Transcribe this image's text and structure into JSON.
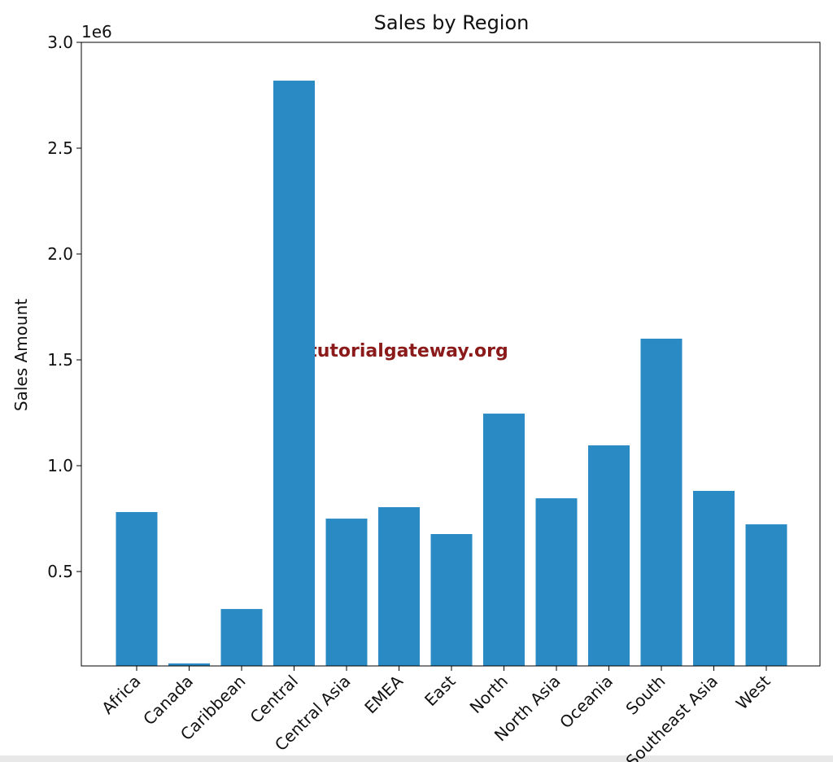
{
  "chart_data": {
    "type": "bar",
    "title": "Sales by Region",
    "y_label": "Sales Amount",
    "y_offset_label": "1e6",
    "watermark": "tutorialgateway.org",
    "categories": [
      "Africa",
      "Canada",
      "Caribbean",
      "Central",
      "Central Asia",
      "EMEA",
      "East",
      "North",
      "North Asia",
      "Oceania",
      "South",
      "Southeast Asia",
      "West"
    ],
    "values": [
      781000,
      66000,
      323000,
      2819000,
      750000,
      804000,
      677000,
      1246000,
      846000,
      1096000,
      1600000,
      881000,
      723000
    ],
    "color": "#2a8ac4",
    "ylim": [
      54000,
      3000000
    ],
    "yticks": [
      {
        "value": 500000,
        "label": "0.5"
      },
      {
        "value": 1000000,
        "label": "1.0"
      },
      {
        "value": 1500000,
        "label": "1.5"
      },
      {
        "value": 2000000,
        "label": "2.0"
      },
      {
        "value": 2500000,
        "label": "2.5"
      },
      {
        "value": 3000000,
        "label": "3.0"
      }
    ],
    "grid": false
  }
}
